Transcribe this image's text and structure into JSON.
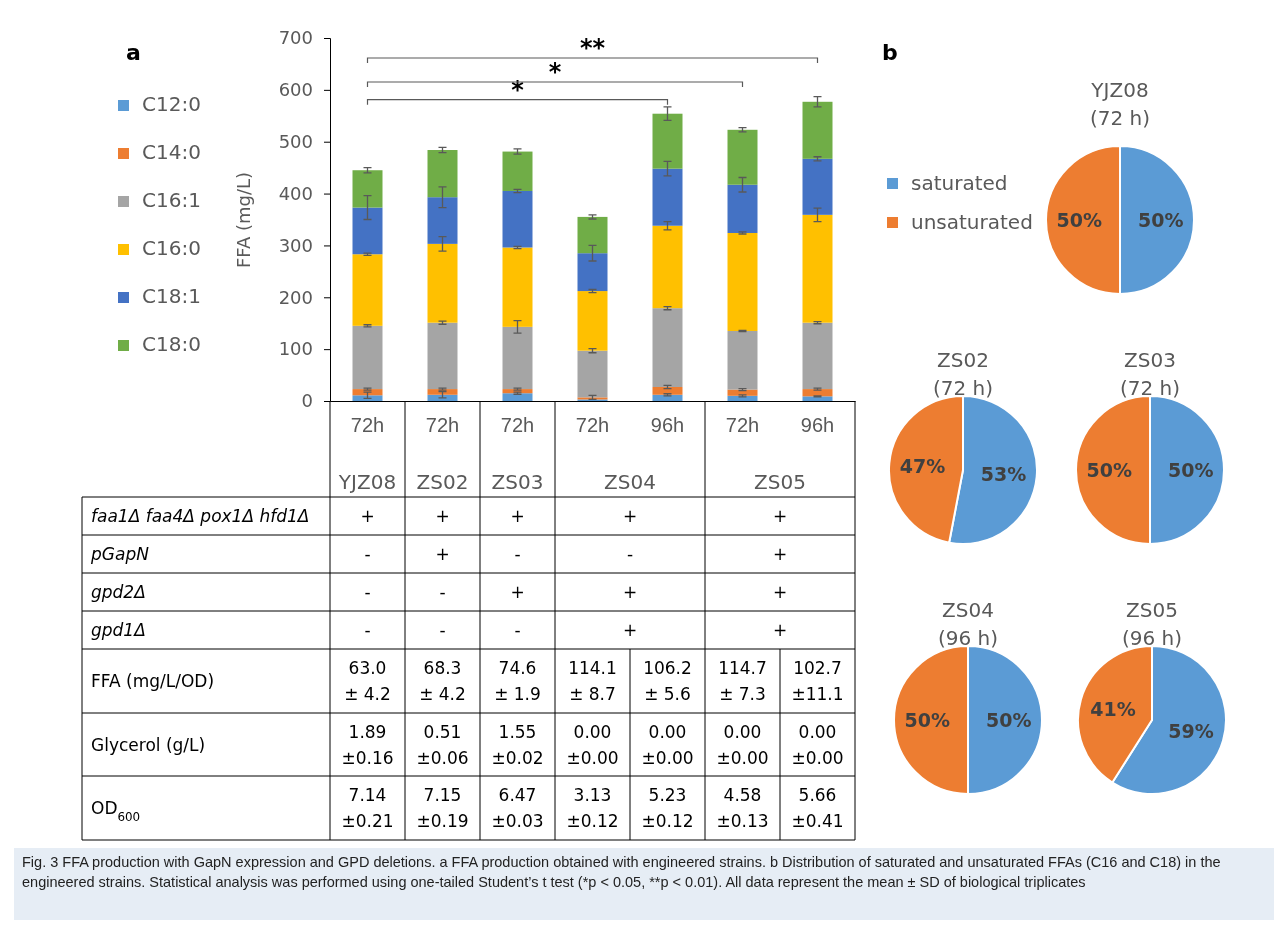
{
  "chart_data": [
    {
      "type": "bar",
      "stacked": true,
      "ylabel": "FFA (mg/L)",
      "categories": [
        "72h",
        "72h",
        "72h",
        "72h",
        "96h",
        "72h",
        "96h"
      ],
      "ylim": [
        0,
        700
      ],
      "yticks": [
        0,
        100,
        200,
        300,
        400,
        500,
        600,
        700
      ],
      "legend": "left",
      "series": [
        {
          "name": "C12:0",
          "color": "#5b9bd5",
          "values": [
            11,
            12,
            15,
            3,
            12,
            10,
            9
          ],
          "errors": [
            6,
            6,
            2,
            null,
            2,
            2,
            1
          ]
        },
        {
          "name": "C14:0",
          "color": "#ed7d31",
          "values": [
            12,
            11,
            8,
            4,
            15,
            12,
            14
          ],
          "errors": [
            2,
            2,
            2,
            4,
            3,
            2,
            2
          ]
        },
        {
          "name": "C16:1",
          "color": "#a5a5a5",
          "values": [
            122,
            128,
            120,
            90,
            152,
            113,
            128
          ],
          "errors": [
            2,
            3,
            12,
            4,
            3,
            1,
            2
          ]
        },
        {
          "name": "C16:0",
          "color": "#ffc000",
          "values": [
            138,
            152,
            153,
            115,
            159,
            189,
            208
          ],
          "errors": [
            2,
            14,
            2,
            3,
            8,
            2,
            13
          ]
        },
        {
          "name": "C18:1",
          "color": "#4472c4",
          "values": [
            90,
            90,
            109,
            73,
            110,
            93,
            108
          ],
          "errors": [
            23,
            20,
            3,
            15,
            14,
            14,
            4
          ]
        },
        {
          "name": "C18:0",
          "color": "#70ad47",
          "values": [
            72,
            91,
            76,
            70,
            106,
            106,
            110
          ],
          "errors": [
            5,
            5,
            5,
            4,
            13,
            4,
            10
          ]
        }
      ],
      "annotations": [
        "*",
        "*",
        "**"
      ]
    },
    {
      "type": "other",
      "categories": [
        "YJZ08",
        "ZS02",
        "ZS03",
        "ZS04",
        null,
        "ZS05",
        null
      ],
      "y_categories": [
        "faa1Δ faa4Δ pox1Δ hfd1Δ",
        "pGapN",
        "gpd2Δ",
        "gpd1Δ",
        "FFA (mg/L/OD)",
        "Glycerol (g/L)",
        "OD$_{600}$"
      ],
      "cell_labels": [
        [
          "+",
          "+",
          "+",
          "+",
          null,
          "+",
          null
        ],
        [
          "-",
          "+",
          "-",
          "-",
          null,
          "+",
          null
        ],
        [
          "-",
          "-",
          "+",
          "+",
          null,
          "+",
          null
        ],
        [
          "-",
          "-",
          "-",
          "+",
          null,
          "+",
          null
        ],
        [
          "63.0\n± 4.2",
          "68.3\n± 4.2",
          "74.6\n± 1.9",
          "114.1\n± 8.7",
          "106.2\n± 5.6",
          "114.7\n± 7.3",
          "102.7\n±11.1"
        ],
        [
          "1.89\n±0.16",
          "0.51\n±0.06",
          "1.55\n±0.02",
          "0.00\n±0.00",
          "0.00\n±0.00",
          "0.00\n±0.00",
          "0.00\n±0.00"
        ],
        [
          "7.14\n±0.21",
          "7.15\n±0.19",
          "6.47\n±0.03",
          "3.13\n±0.12",
          "5.23\n±0.12",
          "4.58\n±0.13",
          "5.66\n±0.41"
        ]
      ],
      "annotations": [
        "a",
        "Fig. 3  FFA production with GapN expression and GPD deletions. a FFA production obtained with engineered strains. b Distribution of saturated and unsaturated FFAs (C16 and C18) in the engineered strains. Statistical analysis was performed using one-tailed Student’s t test (*p < 0.05, **p < 0.01). All data represent the mean ± SD of biological triplicates"
      ]
    },
    {
      "type": "pie",
      "title": "YJZ08",
      "subtitle": "(72 h)",
      "categories": [
        "saturated",
        "unsaturated"
      ],
      "values": [
        50,
        50
      ],
      "colors": [
        "#5b9bd5",
        "#ed7d31"
      ],
      "value_labels": [
        "50%",
        "50%"
      ],
      "legend": "left",
      "annotations": [
        "b"
      ]
    },
    {
      "type": "pie",
      "title": "ZS02",
      "subtitle": "(72 h)",
      "values": [
        53,
        47
      ],
      "colors": [
        "#5b9bd5",
        "#ed7d31"
      ],
      "value_labels": [
        "53%",
        "47%"
      ]
    },
    {
      "type": "pie",
      "title": "ZS03",
      "subtitle": "(72 h)",
      "values": [
        50,
        50
      ],
      "colors": [
        "#5b9bd5",
        "#ed7d31"
      ],
      "value_labels": [
        "50%",
        "50%"
      ]
    },
    {
      "type": "pie",
      "title": "ZS04",
      "subtitle": "(96 h)",
      "values": [
        50,
        50
      ],
      "colors": [
        "#5b9bd5",
        "#ed7d31"
      ],
      "value_labels": [
        "50%",
        "50%"
      ]
    },
    {
      "type": "pie",
      "title": "ZS05",
      "subtitle": "(96 h)",
      "values": [
        59,
        41
      ],
      "colors": [
        "#5b9bd5",
        "#ed7d31"
      ],
      "value_labels": [
        "59%",
        "41%"
      ]
    }
  ]
}
